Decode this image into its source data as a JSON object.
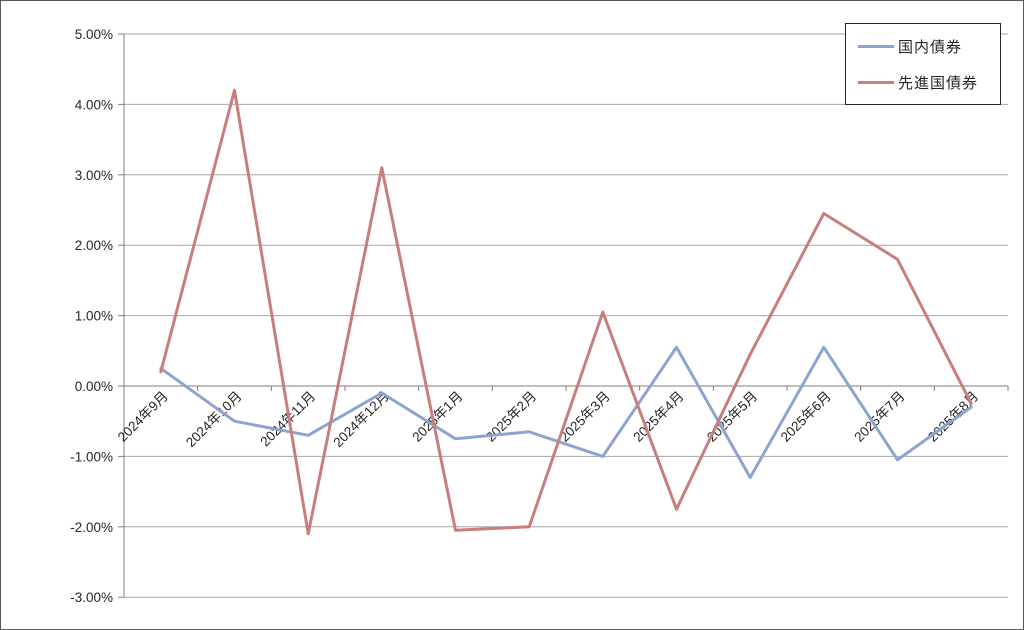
{
  "chart_data": {
    "type": "line",
    "title": "",
    "xlabel": "",
    "ylabel": "",
    "categories": [
      "2024年9月",
      "2024年10月",
      "2024年11月",
      "2024年12月",
      "2025年1月",
      "2025年2月",
      "2025年3月",
      "2025年4月",
      "2025年5月",
      "2025年6月",
      "2025年7月",
      "2025年8月"
    ],
    "series": [
      {
        "name": "国内債券",
        "color": "#8DA4D0",
        "values": [
          0.25,
          -0.5,
          -0.7,
          -0.1,
          -0.75,
          -0.65,
          -1.0,
          0.55,
          -1.3,
          0.55,
          -1.05,
          -0.3
        ]
      },
      {
        "name": "先進国債券",
        "color": "#C87E7D",
        "values": [
          0.2,
          4.2,
          -2.1,
          3.1,
          -2.05,
          -2.0,
          1.05,
          -1.75,
          0.45,
          2.45,
          1.8,
          -0.25
        ]
      }
    ],
    "ylim": [
      -3,
      5
    ],
    "y_tick_step": 1,
    "y_tick_labels": [
      "5.00%",
      "4.00%",
      "3.00%",
      "2.00%",
      "1.00%",
      "0.00%",
      "-1.00%",
      "-2.00%",
      "-3.00%"
    ],
    "value_format": "percent",
    "grid": true,
    "legend_position": "top-right",
    "colors": {
      "gridline": "#a6a6a6",
      "axis": "#7f7f7f",
      "text": "#262626",
      "background": "#ffffff"
    }
  }
}
